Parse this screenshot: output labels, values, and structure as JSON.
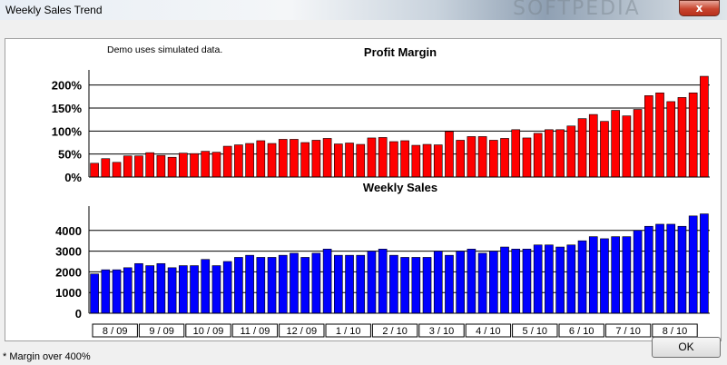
{
  "window": {
    "title": "Weekly Sales Trend",
    "watermark": "SOFTPEDIA",
    "close_glyph": "x"
  },
  "note": "Demo uses simulated data.",
  "footnote": "* Margin over 400%",
  "ok_label": "OK",
  "colors": {
    "profit_bar": "#ff0000",
    "sales_bar": "#0000ff"
  },
  "chart_data": [
    {
      "type": "bar",
      "title": "Profit Margin",
      "ytick_labels": [
        "0%",
        "50%",
        "100%",
        "150%",
        "200%"
      ],
      "ylim": [
        0,
        225
      ],
      "values": [
        30,
        40,
        32,
        46,
        46,
        53,
        47,
        43,
        52,
        51,
        56,
        54,
        67,
        70,
        73,
        79,
        73,
        82,
        82,
        75,
        80,
        84,
        72,
        74,
        71,
        85,
        86,
        77,
        79,
        69,
        71,
        70,
        99,
        80,
        88,
        88,
        80,
        84,
        103,
        85,
        95,
        103,
        103,
        111,
        127,
        136,
        121,
        145,
        133,
        147,
        177,
        183,
        164,
        173,
        183,
        219
      ]
    },
    {
      "type": "bar",
      "title": "Weekly Sales",
      "ytick_labels": [
        "0",
        "1000",
        "2000",
        "3000",
        "4000"
      ],
      "ylim": [
        0,
        5000
      ],
      "values": [
        1900,
        2100,
        2100,
        2200,
        2400,
        2300,
        2400,
        2200,
        2300,
        2300,
        2600,
        2300,
        2500,
        2700,
        2800,
        2700,
        2700,
        2800,
        2900,
        2700,
        2900,
        3100,
        2800,
        2800,
        2800,
        3000,
        3100,
        2800,
        2700,
        2700,
        2700,
        3000,
        2800,
        3000,
        3100,
        2900,
        3000,
        3200,
        3100,
        3100,
        3300,
        3300,
        3200,
        3300,
        3500,
        3700,
        3600,
        3700,
        3700,
        4000,
        4200,
        4300,
        4300,
        4200,
        4700,
        4800
      ],
      "x_period_labels": [
        "8 / 09",
        "9 / 09",
        "10 / 09",
        "11 / 09",
        "12 / 09",
        "1 / 10",
        "2 / 10",
        "3 / 10",
        "4 / 10",
        "5 / 10",
        "6 / 10",
        "7 / 10",
        "8 / 10"
      ]
    }
  ]
}
